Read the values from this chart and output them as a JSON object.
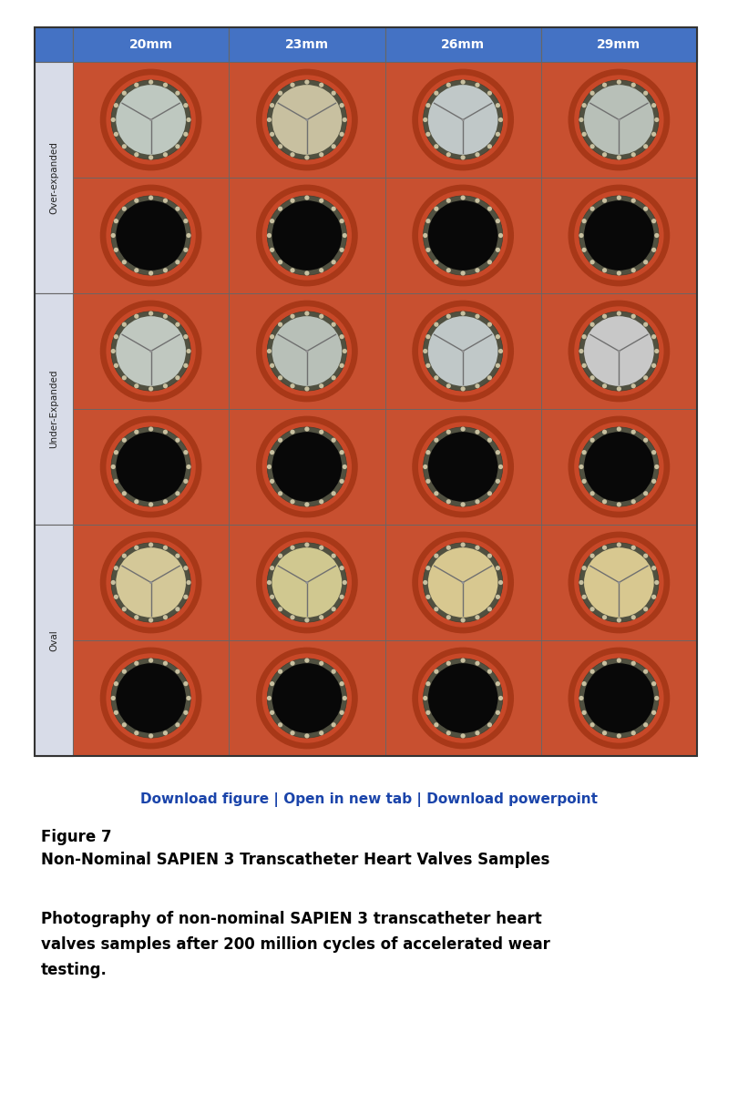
{
  "col_labels": [
    "20mm",
    "23mm",
    "26mm",
    "29mm"
  ],
  "row_labels": [
    "Over-expanded",
    "Under-Expanded",
    "Oval"
  ],
  "header_color": "#4472C4",
  "header_text_color": "#FFFFFF",
  "row_label_bg": "#D8DCE8",
  "grid_line_color": "#666666",
  "cell_bg": "#C85030",
  "fig_bg": "#FFFFFF",
  "download_line": "Download figure | Open in new tab | Download powerpoint",
  "download_color": "#1A44AA",
  "figure_label": "Figure 7",
  "figure_title": "Non-Nominal SAPIEN 3 Transcatheter Heart Valves Samples",
  "caption_line1": "Photography of non-nominal SAPIEN 3 transcatheter heart",
  "caption_line2": "valves samples after 200 million cycles of accelerated wear",
  "caption_line3": "testing.",
  "header_fontsize": 10,
  "row_label_fontsize": 7.5,
  "figure_label_fontsize": 12,
  "figure_title_fontsize": 12,
  "caption_fontsize": 12,
  "download_fontsize": 11,
  "open_colors_group0": [
    "#BEC8C0",
    "#C8C0A0",
    "#C0C8C8",
    "#B8C0B8"
  ],
  "open_colors_group1": [
    "#C0C8C0",
    "#B8C0B8",
    "#C0C8C8",
    "#C8C8C8"
  ],
  "open_colors_group2": [
    "#D4C898",
    "#D0C890",
    "#D8C890",
    "#D8C890"
  ],
  "ring_color": "#B04020",
  "frame_color": "#909090",
  "inner_ring_color": "#787060",
  "closed_color": "#080808"
}
